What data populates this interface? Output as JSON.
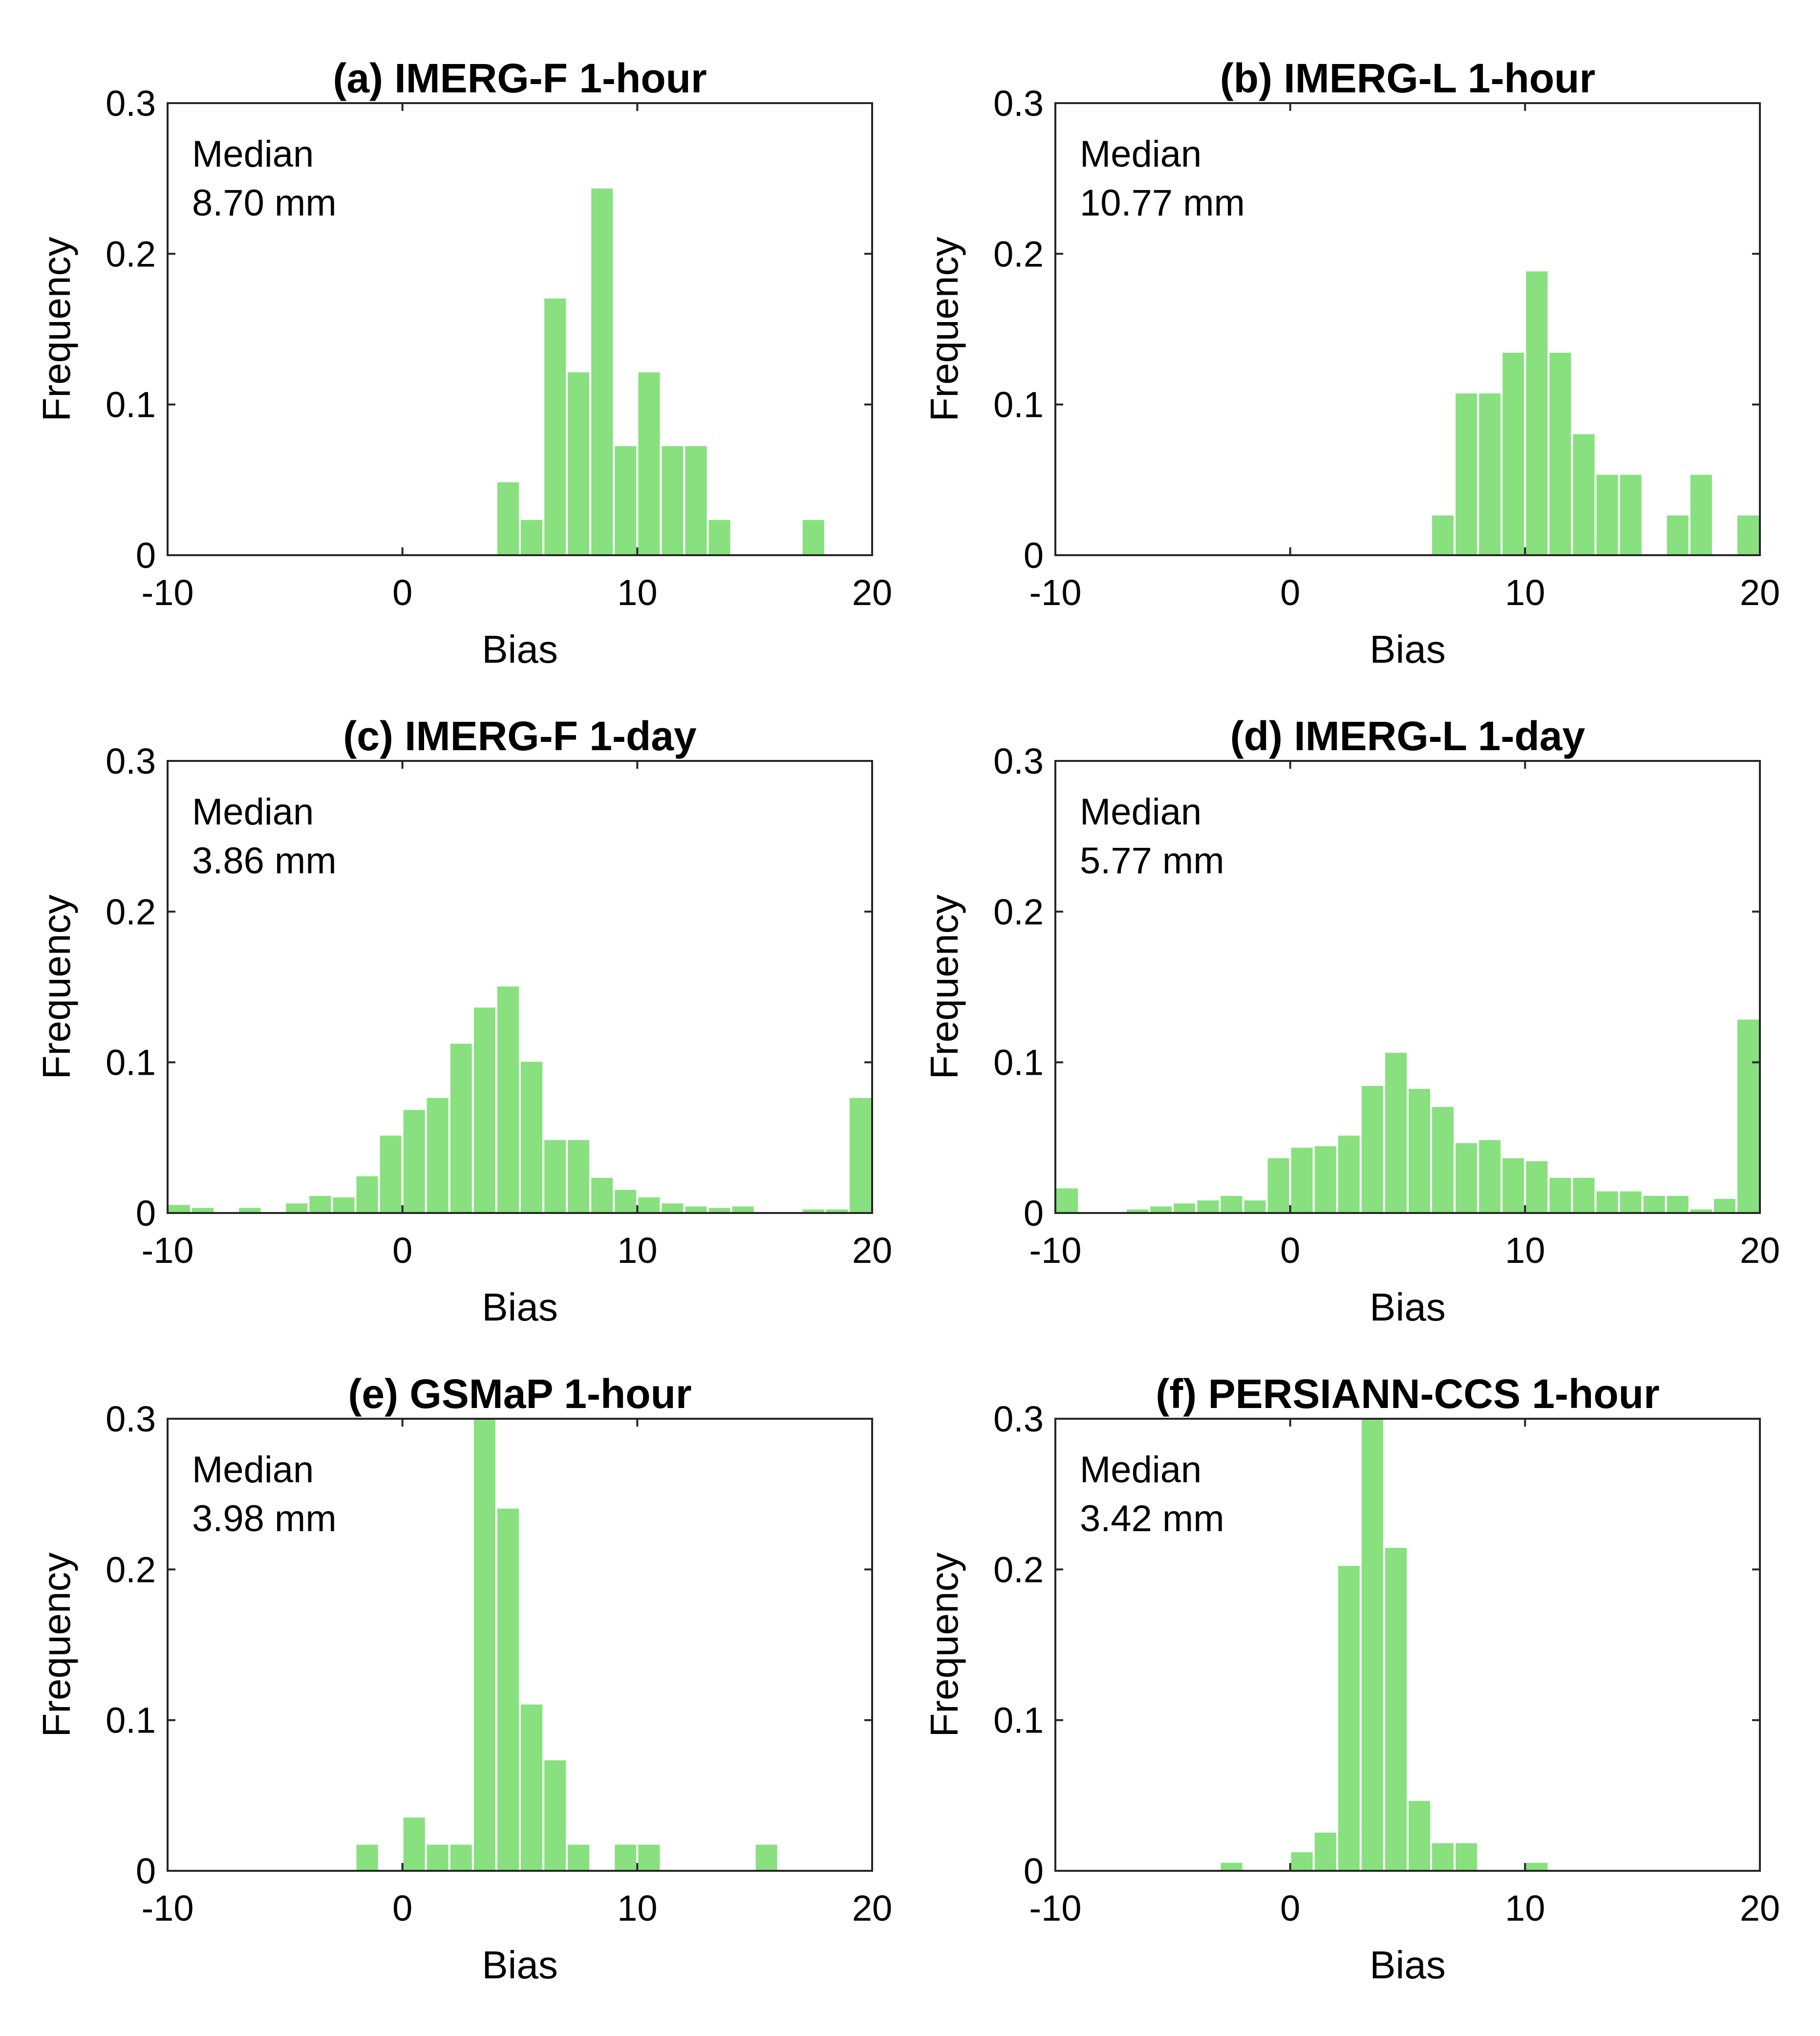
{
  "colors": {
    "bar_fill": "#88e07f",
    "bar_edge": "#ffffff",
    "axes": "#262626",
    "background": "#ffffff"
  },
  "chart_data": [
    {
      "type": "bar",
      "title": "(a) IMERG-F 1-hour",
      "xlabel": "Bias",
      "ylabel": "Frequency",
      "xlim": [
        -10,
        20
      ],
      "ylim": [
        0,
        0.3
      ],
      "xticks": [
        "-10",
        "0",
        "10",
        "20"
      ],
      "yticks": [
        "0",
        "0.1",
        "0.2",
        "0.3"
      ],
      "annotation": {
        "label": "Median",
        "value": "8.70 mm"
      },
      "bin_width": 1,
      "bins": [
        {
          "start": 4,
          "value": 0.049
        },
        {
          "start": 5,
          "value": 0.024
        },
        {
          "start": 6,
          "value": 0.171
        },
        {
          "start": 7,
          "value": 0.122
        },
        {
          "start": 8,
          "value": 0.244
        },
        {
          "start": 9,
          "value": 0.073
        },
        {
          "start": 10,
          "value": 0.122
        },
        {
          "start": 11,
          "value": 0.073
        },
        {
          "start": 12,
          "value": 0.073
        },
        {
          "start": 13,
          "value": 0.024
        },
        {
          "start": 17,
          "value": 0.024
        }
      ]
    },
    {
      "type": "bar",
      "title": "(b) IMERG-L 1-hour",
      "xlabel": "Bias",
      "ylabel": "Frequency",
      "xlim": [
        -10,
        20
      ],
      "ylim": [
        0,
        0.3
      ],
      "xticks": [
        "-10",
        "0",
        "10",
        "20"
      ],
      "yticks": [
        "0",
        "0.1",
        "0.2",
        "0.3"
      ],
      "annotation": {
        "label": "Median",
        "value": "10.77 mm"
      },
      "bin_width": 1,
      "bins": [
        {
          "start": 6,
          "value": 0.027
        },
        {
          "start": 7,
          "value": 0.108
        },
        {
          "start": 8,
          "value": 0.108
        },
        {
          "start": 9,
          "value": 0.135
        },
        {
          "start": 10,
          "value": 0.189
        },
        {
          "start": 11,
          "value": 0.135
        },
        {
          "start": 12,
          "value": 0.081
        },
        {
          "start": 13,
          "value": 0.054
        },
        {
          "start": 14,
          "value": 0.054
        },
        {
          "start": 16,
          "value": 0.027
        },
        {
          "start": 17,
          "value": 0.054
        },
        {
          "start": 19,
          "value": 0.027
        }
      ]
    },
    {
      "type": "bar",
      "title": "(c) IMERG-F 1-day",
      "xlabel": "Bias",
      "ylabel": "Frequency",
      "xlim": [
        -10,
        20
      ],
      "ylim": [
        0,
        0.3
      ],
      "xticks": [
        "-10",
        "0",
        "10",
        "20"
      ],
      "yticks": [
        "0",
        "0.1",
        "0.2",
        "0.3"
      ],
      "annotation": {
        "label": "Median",
        "value": "3.86 mm"
      },
      "bin_width": 1,
      "bins": [
        {
          "start": -10,
          "value": 0.006
        },
        {
          "start": -9,
          "value": 0.004
        },
        {
          "start": -7,
          "value": 0.004
        },
        {
          "start": -5,
          "value": 0.007
        },
        {
          "start": -4,
          "value": 0.012
        },
        {
          "start": -3,
          "value": 0.011
        },
        {
          "start": -2,
          "value": 0.025
        },
        {
          "start": -1,
          "value": 0.052
        },
        {
          "start": 0,
          "value": 0.069
        },
        {
          "start": 1,
          "value": 0.077
        },
        {
          "start": 2,
          "value": 0.113
        },
        {
          "start": 3,
          "value": 0.137
        },
        {
          "start": 4,
          "value": 0.151
        },
        {
          "start": 5,
          "value": 0.101
        },
        {
          "start": 6,
          "value": 0.049
        },
        {
          "start": 7,
          "value": 0.049
        },
        {
          "start": 8,
          "value": 0.024
        },
        {
          "start": 9,
          "value": 0.016
        },
        {
          "start": 10,
          "value": 0.011
        },
        {
          "start": 11,
          "value": 0.007
        },
        {
          "start": 12,
          "value": 0.005
        },
        {
          "start": 13,
          "value": 0.004
        },
        {
          "start": 14,
          "value": 0.005
        },
        {
          "start": 17,
          "value": 0.003
        },
        {
          "start": 18,
          "value": 0.003
        },
        {
          "start": 19,
          "value": 0.077
        }
      ]
    },
    {
      "type": "bar",
      "title": "(d) IMERG-L 1-day",
      "xlabel": "Bias",
      "ylabel": "Frequency",
      "xlim": [
        -10,
        20
      ],
      "ylim": [
        0,
        0.3
      ],
      "xticks": [
        "-10",
        "0",
        "10",
        "20"
      ],
      "yticks": [
        "0",
        "0.1",
        "0.2",
        "0.3"
      ],
      "annotation": {
        "label": "Median",
        "value": "5.77 mm"
      },
      "bin_width": 1,
      "bins": [
        {
          "start": -10,
          "value": 0.017
        },
        {
          "start": -9,
          "value": 0.001
        },
        {
          "start": -8,
          "value": 0.001
        },
        {
          "start": -7,
          "value": 0.003
        },
        {
          "start": -6,
          "value": 0.005
        },
        {
          "start": -5,
          "value": 0.007
        },
        {
          "start": -4,
          "value": 0.009
        },
        {
          "start": -3,
          "value": 0.012
        },
        {
          "start": -2,
          "value": 0.009
        },
        {
          "start": -1,
          "value": 0.037
        },
        {
          "start": 0,
          "value": 0.044
        },
        {
          "start": 1,
          "value": 0.045
        },
        {
          "start": 2,
          "value": 0.052
        },
        {
          "start": 3,
          "value": 0.085
        },
        {
          "start": 4,
          "value": 0.107
        },
        {
          "start": 5,
          "value": 0.083
        },
        {
          "start": 6,
          "value": 0.071
        },
        {
          "start": 7,
          "value": 0.047
        },
        {
          "start": 8,
          "value": 0.049
        },
        {
          "start": 9,
          "value": 0.037
        },
        {
          "start": 10,
          "value": 0.035
        },
        {
          "start": 11,
          "value": 0.024
        },
        {
          "start": 12,
          "value": 0.024
        },
        {
          "start": 13,
          "value": 0.015
        },
        {
          "start": 14,
          "value": 0.015
        },
        {
          "start": 15,
          "value": 0.012
        },
        {
          "start": 16,
          "value": 0.012
        },
        {
          "start": 17,
          "value": 0.003
        },
        {
          "start": 18,
          "value": 0.01
        },
        {
          "start": 19,
          "value": 0.129
        }
      ]
    },
    {
      "type": "bar",
      "title": "(e) GSMaP 1-hour",
      "xlabel": "Bias",
      "ylabel": "Frequency",
      "xlim": [
        -10,
        20
      ],
      "ylim": [
        0,
        0.3
      ],
      "xticks": [
        "-10",
        "0",
        "10",
        "20"
      ],
      "yticks": [
        "0",
        "0.1",
        "0.2",
        "0.3"
      ],
      "annotation": {
        "label": "Median",
        "value": "3.98 mm"
      },
      "bin_width": 1,
      "bins": [
        {
          "start": -2,
          "value": 0.018
        },
        {
          "start": 0,
          "value": 0.036
        },
        {
          "start": 1,
          "value": 0.018
        },
        {
          "start": 2,
          "value": 0.018
        },
        {
          "start": 3,
          "value": 0.3
        },
        {
          "start": 4,
          "value": 0.241
        },
        {
          "start": 5,
          "value": 0.111
        },
        {
          "start": 6,
          "value": 0.074
        },
        {
          "start": 7,
          "value": 0.018
        },
        {
          "start": 9,
          "value": 0.018
        },
        {
          "start": 10,
          "value": 0.018
        },
        {
          "start": 15,
          "value": 0.018
        }
      ]
    },
    {
      "type": "bar",
      "title": "(f) PERSIANN-CCS 1-hour",
      "xlabel": "Bias",
      "ylabel": "Frequency",
      "xlim": [
        -10,
        20
      ],
      "ylim": [
        0,
        0.3
      ],
      "xticks": [
        "-10",
        "0",
        "10",
        "20"
      ],
      "yticks": [
        "0",
        "0.1",
        "0.2",
        "0.3"
      ],
      "annotation": {
        "label": "Median",
        "value": "3.42 mm"
      },
      "bin_width": 1,
      "bins": [
        {
          "start": -3,
          "value": 0.006
        },
        {
          "start": 0,
          "value": 0.013
        },
        {
          "start": 1,
          "value": 0.026
        },
        {
          "start": 2,
          "value": 0.203
        },
        {
          "start": 3,
          "value": 0.3
        },
        {
          "start": 4,
          "value": 0.215
        },
        {
          "start": 5,
          "value": 0.047
        },
        {
          "start": 6,
          "value": 0.019
        },
        {
          "start": 7,
          "value": 0.019
        },
        {
          "start": 10,
          "value": 0.006
        }
      ]
    }
  ]
}
